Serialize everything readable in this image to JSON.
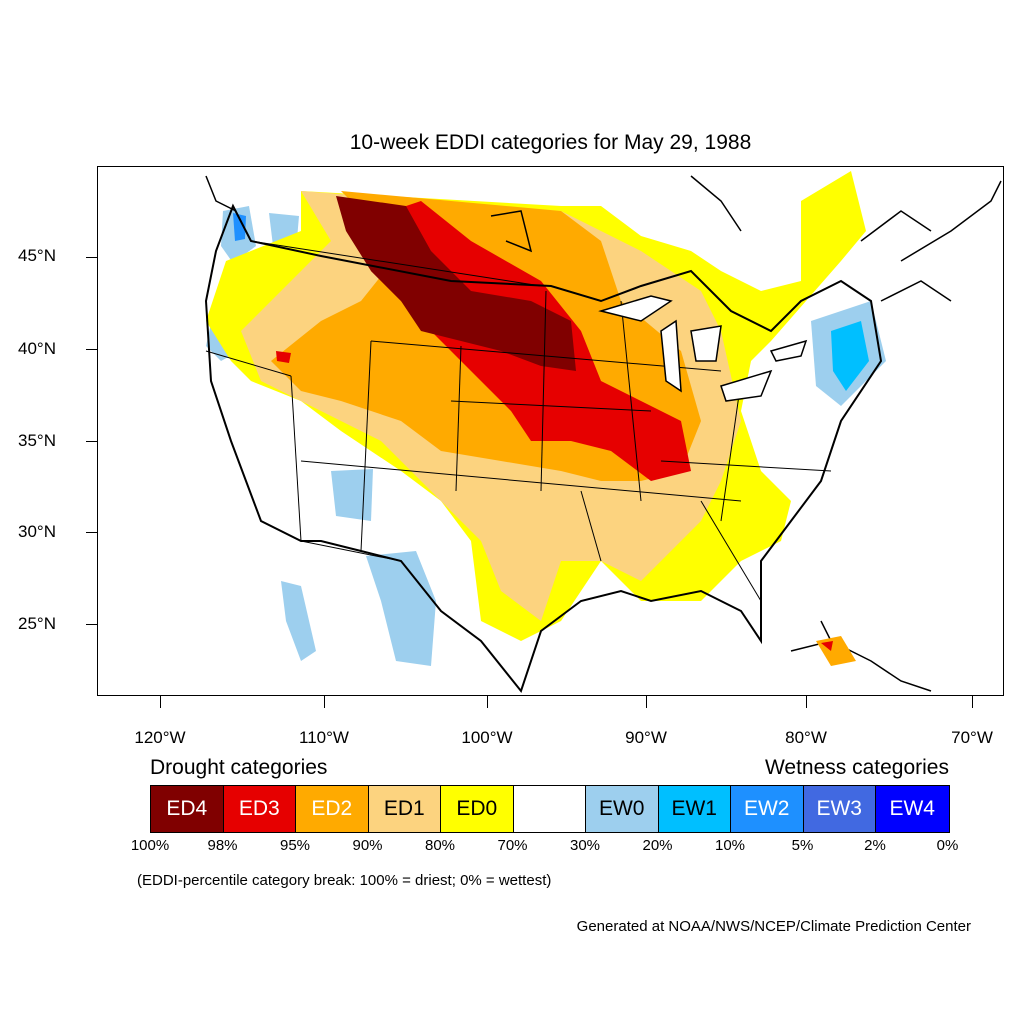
{
  "title": "10-week EDDI categories for May 29, 1988",
  "lat_labels": [
    "45°N",
    "40°N",
    "35°N",
    "30°N",
    "25°N"
  ],
  "lon_labels": [
    "120°W",
    "110°W",
    "100°W",
    "90°W",
    "80°W",
    "70°W"
  ],
  "drought_heading": "Drought categories",
  "wetness_heading": "Wetness categories",
  "categories": [
    {
      "label": "ED4",
      "color": "#800000",
      "text_color": "#ffffff"
    },
    {
      "label": "ED3",
      "color": "#e60000",
      "text_color": "#ffffff"
    },
    {
      "label": "ED2",
      "color": "#ffaa00",
      "text_color": "#ffffff"
    },
    {
      "label": "ED1",
      "color": "#fcd37f",
      "text_color": "#000000"
    },
    {
      "label": "ED0",
      "color": "#ffff00",
      "text_color": "#000000"
    },
    {
      "label": "",
      "color": "#ffffff",
      "text_color": "#000000"
    },
    {
      "label": "EW0",
      "color": "#9dcfee",
      "text_color": "#000000"
    },
    {
      "label": "EW1",
      "color": "#00bfff",
      "text_color": "#000000"
    },
    {
      "label": "EW2",
      "color": "#1e90ff",
      "text_color": "#ffffff"
    },
    {
      "label": "EW3",
      "color": "#4169e1",
      "text_color": "#ffffff"
    },
    {
      "label": "EW4",
      "color": "#0000ff",
      "text_color": "#ffffff"
    }
  ],
  "percentiles": [
    "100%",
    "98%",
    "95%",
    "90%",
    "80%",
    "70%",
    "30%",
    "20%",
    "10%",
    "5%",
    "2%",
    "0%"
  ],
  "note": "(EDDI-percentile category break: 100% = driest; 0% = wettest)",
  "credit": "Generated at NOAA/NWS/NCEP/Climate Prediction Center"
}
